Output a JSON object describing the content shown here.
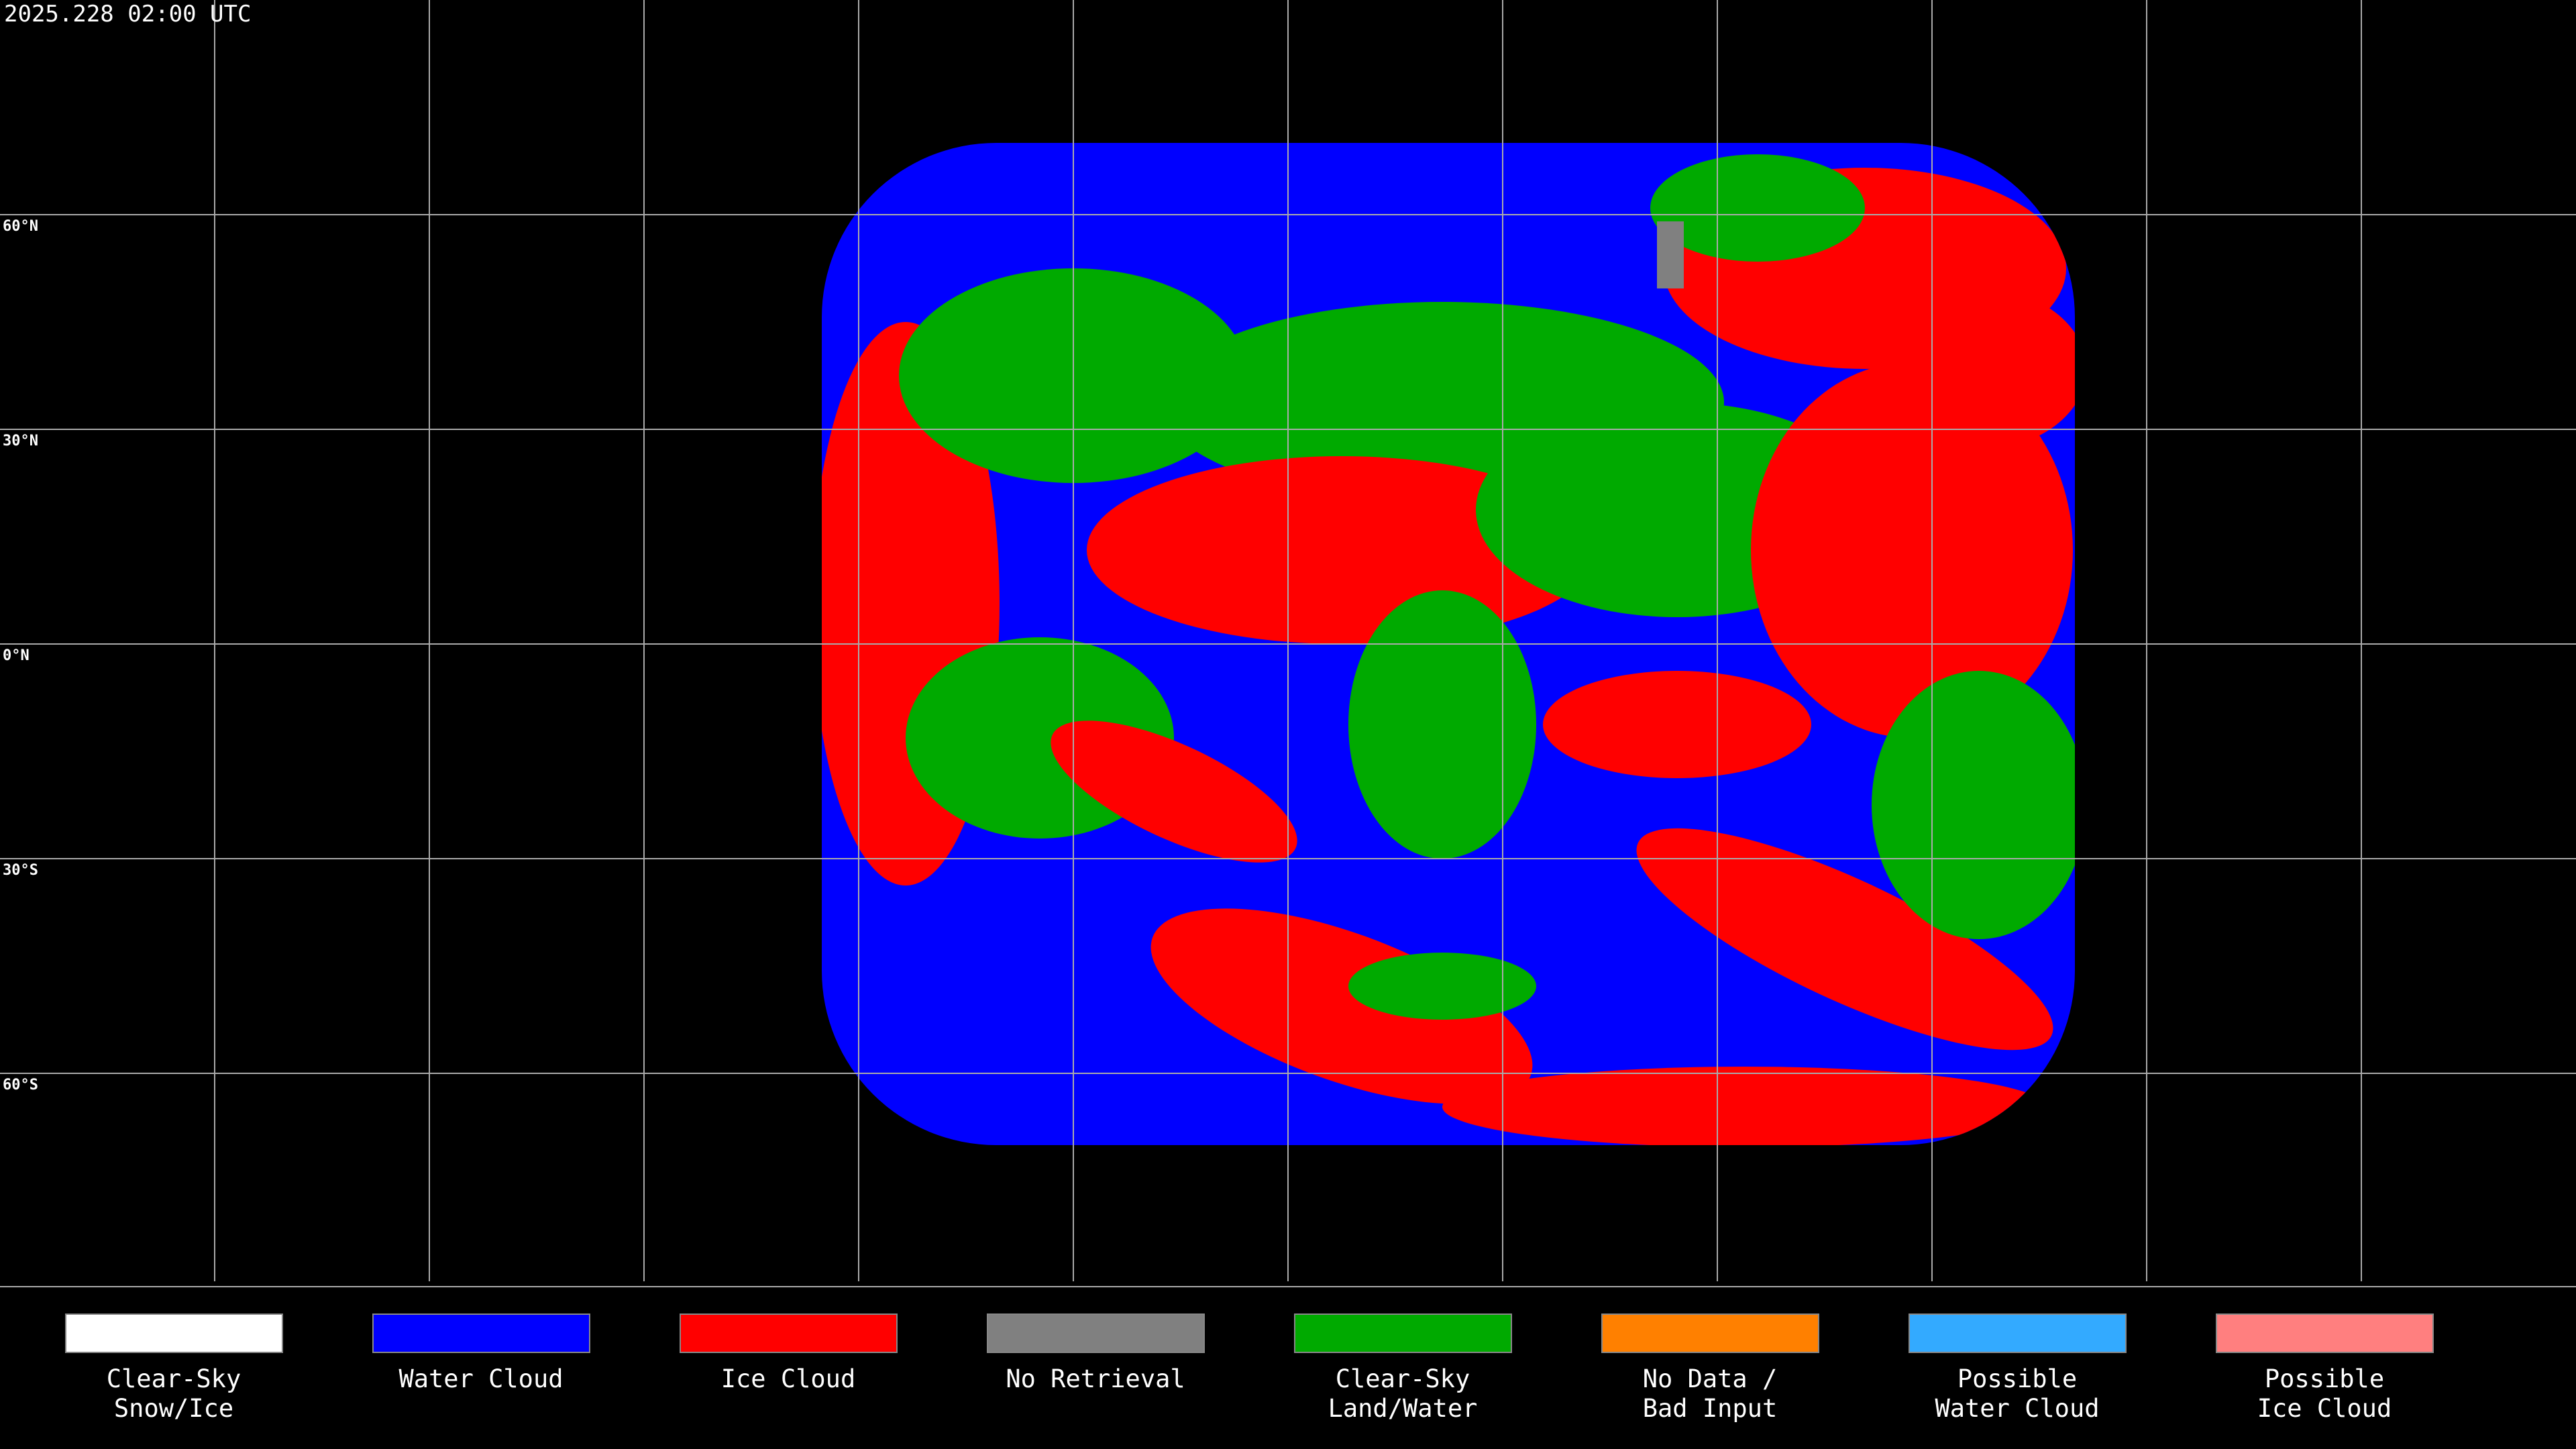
{
  "header": {
    "timestamp": "2025.228 02:00 UTC"
  },
  "map": {
    "latitude_labels": [
      "60°N",
      "30°N",
      "0°N",
      "30°S",
      "60°S"
    ]
  },
  "legend": {
    "items": [
      {
        "lines": [
          "Clear-Sky",
          "Snow/Ice"
        ],
        "color": "#ffffff"
      },
      {
        "lines": [
          "Water Cloud"
        ],
        "color": "#0000ff"
      },
      {
        "lines": [
          "Ice Cloud"
        ],
        "color": "#ff0000"
      },
      {
        "lines": [
          "No Retrieval"
        ],
        "color": "#808080"
      },
      {
        "lines": [
          "Clear-Sky",
          "Land/Water"
        ],
        "color": "#00aa00"
      },
      {
        "lines": [
          "No Data /",
          "Bad Input"
        ],
        "color": "#ff8000"
      },
      {
        "lines": [
          "Possible",
          "Water Cloud"
        ],
        "color": "#33aaff"
      },
      {
        "lines": [
          "Possible",
          "Ice Cloud"
        ],
        "color": "#ff7f7f"
      }
    ]
  }
}
